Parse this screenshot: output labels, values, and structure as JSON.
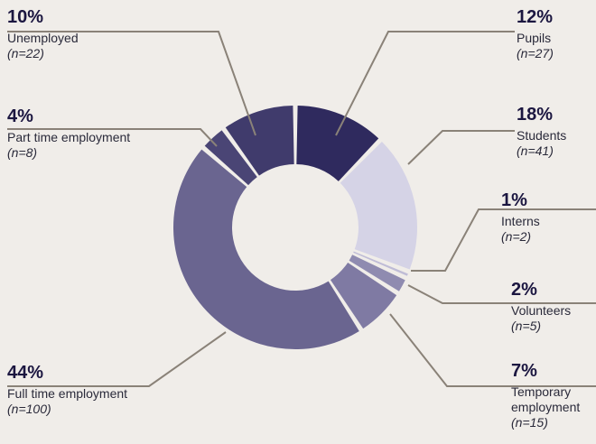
{
  "chart_data": {
    "type": "pie",
    "donut": true,
    "slices": [
      {
        "label": "Pupils",
        "percent": "12%",
        "n": "(n=27)",
        "value": 27,
        "color": "#2f2a5e"
      },
      {
        "label": "Students",
        "percent": "18%",
        "n": "(n=41)",
        "value": 41,
        "color": "#d5d3e6"
      },
      {
        "label": "Interns",
        "percent": "1%",
        "n": "(n=2)",
        "value": 2,
        "color": "#bfbcd6"
      },
      {
        "label": "Volunteers",
        "percent": "2%",
        "n": "(n=5)",
        "value": 5,
        "color": "#8f8bb0"
      },
      {
        "label": "Temporary employment",
        "label_lines": [
          "Temporary",
          "employment"
        ],
        "percent": "7%",
        "n": "(n=15)",
        "value": 15,
        "color": "#7f7aa3"
      },
      {
        "label": "Full time employment",
        "percent": "44%",
        "n": "(n=100)",
        "value": 100,
        "color": "#6a6590"
      },
      {
        "label": "Part time employment",
        "percent": "4%",
        "n": "(n=8)",
        "value": 8,
        "color": "#4a4575"
      },
      {
        "label": "Unemployed",
        "percent": "10%",
        "n": "(n=22)",
        "value": 22,
        "color": "#403b6c"
      }
    ],
    "leader_line_color": "#8a8278"
  }
}
